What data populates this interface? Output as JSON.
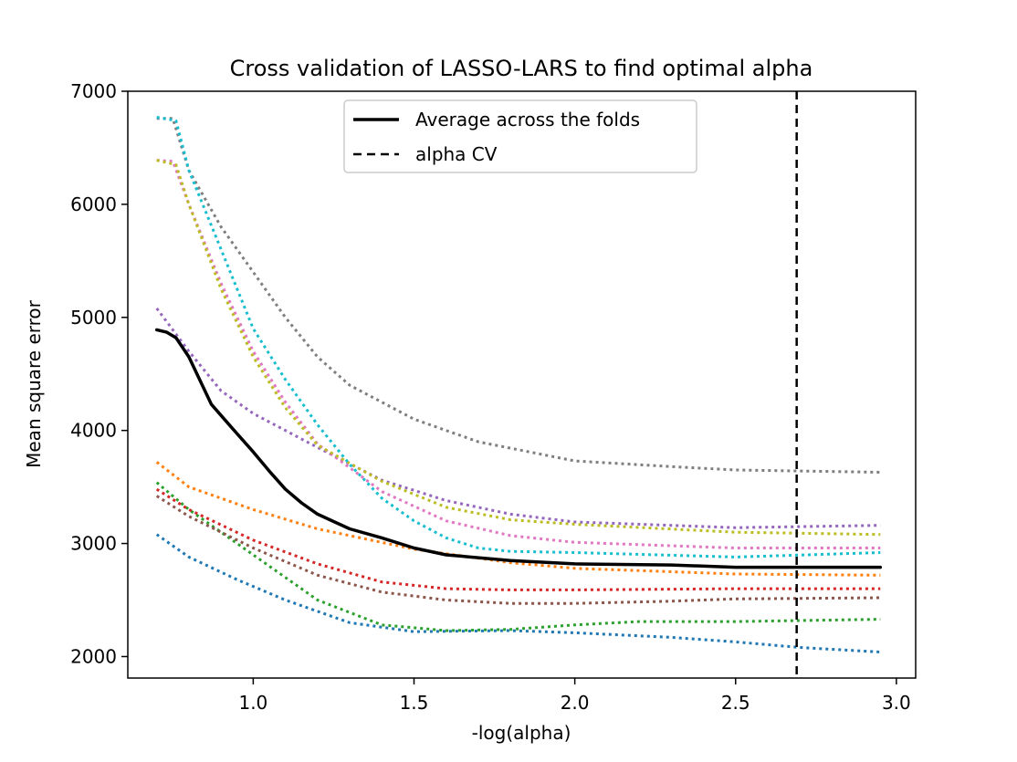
{
  "chart_data": {
    "type": "line",
    "title": "Cross validation of LASSO-LARS to find optimal alpha",
    "xlabel": "-log(alpha)",
    "ylabel": "Mean square error",
    "xlim": [
      0.61,
      3.06
    ],
    "ylim": [
      1810,
      7000
    ],
    "xticks": [
      1.0,
      1.5,
      2.0,
      2.5,
      3.0
    ],
    "xtick_labels": [
      "1.0",
      "1.5",
      "2.0",
      "2.5",
      "3.0"
    ],
    "yticks": [
      2000,
      3000,
      4000,
      5000,
      6000,
      7000
    ],
    "ytick_labels": [
      "2000",
      "3000",
      "4000",
      "5000",
      "6000",
      "7000"
    ],
    "grid": false,
    "legend": {
      "placement": "top-center",
      "entries": [
        {
          "label": "Average across the folds",
          "style": "solid",
          "color": "#000000"
        },
        {
          "label": "alpha CV",
          "style": "dashed",
          "color": "#000000"
        }
      ]
    },
    "alpha_cv": 2.69,
    "series": [
      {
        "color": "#1f77b4",
        "style": "dotted",
        "points": [
          [
            0.7,
            3080
          ],
          [
            0.8,
            2880
          ],
          [
            0.95,
            2680
          ],
          [
            1.1,
            2500
          ],
          [
            1.3,
            2300
          ],
          [
            1.5,
            2220
          ],
          [
            1.8,
            2230
          ],
          [
            2.0,
            2210
          ],
          [
            2.3,
            2170
          ],
          [
            2.5,
            2130
          ],
          [
            2.7,
            2080
          ],
          [
            2.95,
            2040
          ]
        ]
      },
      {
        "color": "#ff7f0e",
        "style": "dotted",
        "points": [
          [
            0.7,
            3720
          ],
          [
            0.8,
            3500
          ],
          [
            1.0,
            3300
          ],
          [
            1.2,
            3130
          ],
          [
            1.5,
            2950
          ],
          [
            1.8,
            2830
          ],
          [
            2.0,
            2780
          ],
          [
            2.5,
            2730
          ],
          [
            2.95,
            2720
          ]
        ]
      },
      {
        "color": "#2ca02c",
        "style": "dotted",
        "points": [
          [
            0.7,
            3540
          ],
          [
            0.8,
            3300
          ],
          [
            1.0,
            2900
          ],
          [
            1.2,
            2500
          ],
          [
            1.4,
            2280
          ],
          [
            1.6,
            2230
          ],
          [
            1.8,
            2240
          ],
          [
            2.0,
            2280
          ],
          [
            2.2,
            2310
          ],
          [
            2.5,
            2310
          ],
          [
            2.95,
            2330
          ]
        ]
      },
      {
        "color": "#d62728",
        "style": "dotted",
        "points": [
          [
            0.7,
            3480
          ],
          [
            0.8,
            3300
          ],
          [
            1.0,
            3030
          ],
          [
            1.2,
            2820
          ],
          [
            1.4,
            2660
          ],
          [
            1.6,
            2600
          ],
          [
            1.8,
            2590
          ],
          [
            2.0,
            2590
          ],
          [
            2.5,
            2600
          ],
          [
            2.95,
            2600
          ]
        ]
      },
      {
        "color": "#9467bd",
        "style": "dotted",
        "points": [
          [
            0.7,
            5080
          ],
          [
            0.8,
            4700
          ],
          [
            0.9,
            4350
          ],
          [
            1.0,
            4150
          ],
          [
            1.2,
            3850
          ],
          [
            1.4,
            3560
          ],
          [
            1.6,
            3380
          ],
          [
            1.8,
            3260
          ],
          [
            2.0,
            3190
          ],
          [
            2.5,
            3140
          ],
          [
            2.95,
            3160
          ]
        ]
      },
      {
        "color": "#8c564b",
        "style": "dotted",
        "points": [
          [
            0.7,
            3420
          ],
          [
            0.8,
            3240
          ],
          [
            1.0,
            2960
          ],
          [
            1.2,
            2720
          ],
          [
            1.4,
            2570
          ],
          [
            1.6,
            2500
          ],
          [
            1.8,
            2470
          ],
          [
            2.0,
            2470
          ],
          [
            2.3,
            2490
          ],
          [
            2.5,
            2510
          ],
          [
            2.95,
            2520
          ]
        ]
      },
      {
        "color": "#e377c2",
        "style": "dotted",
        "points": [
          [
            0.7,
            6390
          ],
          [
            0.75,
            6380
          ],
          [
            0.8,
            6000
          ],
          [
            0.9,
            5300
          ],
          [
            1.0,
            4700
          ],
          [
            1.1,
            4250
          ],
          [
            1.2,
            3880
          ],
          [
            1.4,
            3460
          ],
          [
            1.6,
            3200
          ],
          [
            1.8,
            3070
          ],
          [
            2.0,
            3010
          ],
          [
            2.5,
            2960
          ],
          [
            2.95,
            2960
          ]
        ]
      },
      {
        "color": "#7f7f7f",
        "style": "dotted",
        "points": [
          [
            0.7,
            6760
          ],
          [
            0.75,
            6760
          ],
          [
            0.8,
            6300
          ],
          [
            0.9,
            5800
          ],
          [
            1.0,
            5400
          ],
          [
            1.1,
            5000
          ],
          [
            1.2,
            4650
          ],
          [
            1.3,
            4400
          ],
          [
            1.5,
            4100
          ],
          [
            1.7,
            3900
          ],
          [
            2.0,
            3730
          ],
          [
            2.3,
            3680
          ],
          [
            2.5,
            3650
          ],
          [
            2.95,
            3630
          ]
        ]
      },
      {
        "color": "#bcbd22",
        "style": "dotted",
        "points": [
          [
            0.7,
            6390
          ],
          [
            0.76,
            6350
          ],
          [
            0.8,
            6000
          ],
          [
            0.9,
            5250
          ],
          [
            1.0,
            4650
          ],
          [
            1.1,
            4200
          ],
          [
            1.2,
            3870
          ],
          [
            1.4,
            3550
          ],
          [
            1.6,
            3320
          ],
          [
            1.8,
            3210
          ],
          [
            2.0,
            3170
          ],
          [
            2.5,
            3100
          ],
          [
            2.95,
            3080
          ]
        ]
      },
      {
        "color": "#17becf",
        "style": "dotted",
        "points": [
          [
            0.7,
            6770
          ],
          [
            0.76,
            6740
          ],
          [
            0.8,
            6300
          ],
          [
            0.9,
            5600
          ],
          [
            1.0,
            4900
          ],
          [
            1.1,
            4450
          ],
          [
            1.2,
            4050
          ],
          [
            1.3,
            3700
          ],
          [
            1.4,
            3400
          ],
          [
            1.5,
            3200
          ],
          [
            1.6,
            3050
          ],
          [
            1.7,
            2960
          ],
          [
            1.8,
            2930
          ],
          [
            2.0,
            2920
          ],
          [
            2.5,
            2880
          ],
          [
            2.95,
            2920
          ]
        ]
      },
      {
        "name": "Average across the folds",
        "color": "#000000",
        "style": "solid",
        "width": 3.5,
        "points": [
          [
            0.7,
            4890
          ],
          [
            0.73,
            4870
          ],
          [
            0.76,
            4820
          ],
          [
            0.8,
            4650
          ],
          [
            0.87,
            4230
          ],
          [
            0.95,
            3970
          ],
          [
            1.0,
            3810
          ],
          [
            1.05,
            3640
          ],
          [
            1.1,
            3480
          ],
          [
            1.15,
            3360
          ],
          [
            1.2,
            3260
          ],
          [
            1.3,
            3130
          ],
          [
            1.4,
            3050
          ],
          [
            1.5,
            2960
          ],
          [
            1.6,
            2900
          ],
          [
            1.8,
            2850
          ],
          [
            2.0,
            2820
          ],
          [
            2.3,
            2810
          ],
          [
            2.5,
            2790
          ],
          [
            2.7,
            2790
          ],
          [
            2.95,
            2790
          ]
        ]
      }
    ]
  }
}
